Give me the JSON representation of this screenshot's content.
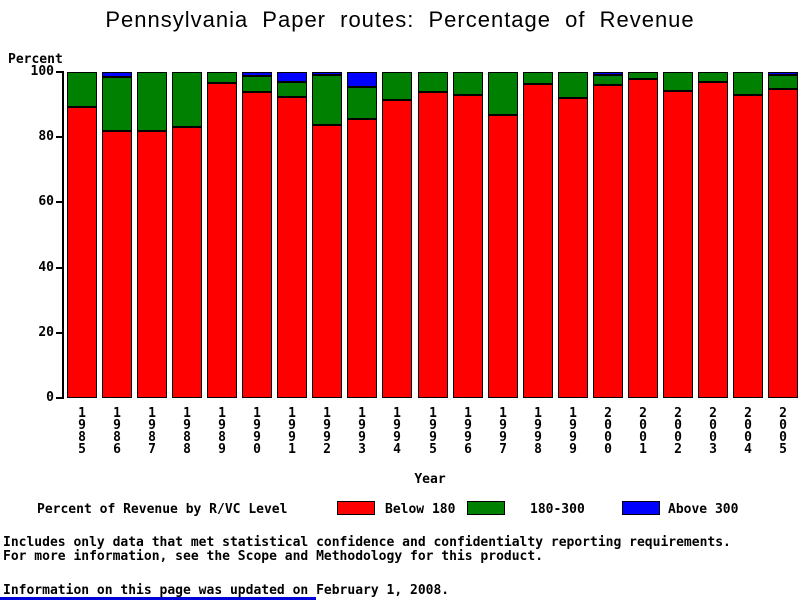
{
  "title": "Pennsylvania Paper routes: Percentage of Revenue",
  "chart_data": {
    "type": "bar",
    "subtype": "stacked-100",
    "title": "Pennsylvania Paper routes: Percentage of Revenue",
    "xlabel": "Year",
    "ylabel": "Percent",
    "ylim": [
      0,
      100
    ],
    "yticks": [
      0,
      20,
      40,
      60,
      80,
      100
    ],
    "grid": false,
    "legend_position": "bottom",
    "legend_title": "Percent of Revenue by R/VC Level",
    "categories": [
      "1985",
      "1986",
      "1987",
      "1988",
      "1989",
      "1990",
      "1991",
      "1992",
      "1993",
      "1994",
      "1995",
      "1996",
      "1997",
      "1998",
      "1999",
      "2000",
      "2001",
      "2002",
      "2003",
      "2004",
      "2005"
    ],
    "series": [
      {
        "name": "Below 180",
        "color": "#ff0000",
        "values": [
          89.3,
          82.0,
          82.0,
          83.0,
          96.6,
          93.8,
          92.4,
          83.6,
          85.6,
          91.3,
          94.0,
          92.8,
          86.7,
          96.2,
          91.9,
          95.9,
          97.9,
          94.1,
          96.9,
          93.0,
          94.9
        ]
      },
      {
        "name": "180-300",
        "color": "#008000",
        "values": [
          10.7,
          16.5,
          18.0,
          17.0,
          3.4,
          5.0,
          4.5,
          15.6,
          9.8,
          8.7,
          6.0,
          7.2,
          13.3,
          3.8,
          8.1,
          3.1,
          2.1,
          5.9,
          3.1,
          7.0,
          4.3
        ]
      },
      {
        "name": "Above 300",
        "color": "#0000ff",
        "values": [
          0,
          1.5,
          0,
          0,
          0,
          1.2,
          3.1,
          0.8,
          4.6,
          0,
          0,
          0,
          0,
          0,
          0,
          1.0,
          0,
          0,
          0,
          0,
          0.8
        ]
      }
    ]
  },
  "footer": {
    "line1": "Includes only data that met statistical confidence and confidentialty reporting requirements.",
    "line2": "For more information, see the Scope and Methodology for this product.",
    "updated": "Information on this page was updated on February 1, 2008."
  }
}
